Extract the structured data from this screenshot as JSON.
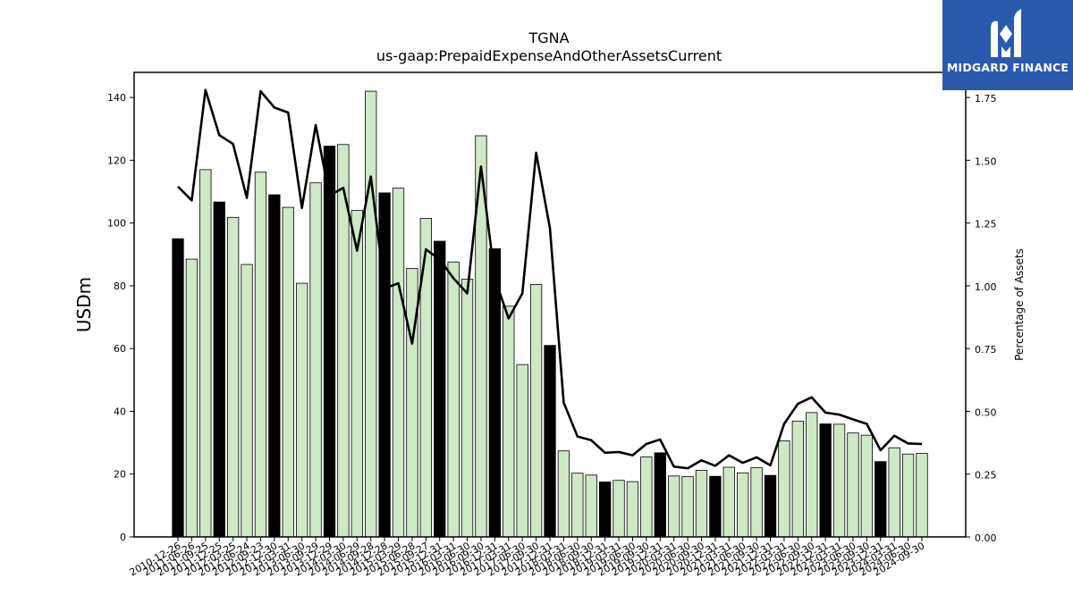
{
  "logo": {
    "text": "MIDGARD FINANCE"
  },
  "chart_data": {
    "type": "bar",
    "title": "TGNA",
    "subtitle": "us-gaap:PrepaidExpenseAndOtherAssetsCurrent",
    "ylabel": "USDm",
    "y2label": "Percentage of Assets",
    "ylim": [
      0,
      148
    ],
    "y2lim": [
      0,
      1.85
    ],
    "yticks": [
      0,
      20,
      40,
      60,
      80,
      100,
      120,
      140
    ],
    "y2ticks": [
      "0.00",
      "0.25",
      "0.50",
      "0.75",
      "1.00",
      "1.25",
      "1.50",
      "1.75"
    ],
    "grid": false,
    "colors": {
      "annual_bar": "#000000",
      "quarter_bar": "#cfe8c8",
      "line": "#000000"
    },
    "categories": [
      "2010-12-26",
      "2011-06-26",
      "2011-09-25",
      "2011-12-25",
      "2012-03-25",
      "2012-06-24",
      "2012-09-23",
      "2012-12-30",
      "2013-03-31",
      "2013-06-30",
      "2013-09-29",
      "2013-12-29",
      "2014-03-30",
      "2014-06-29",
      "2014-09-28",
      "2014-12-28",
      "2015-03-29",
      "2015-06-28",
      "2015-09-27",
      "2015-12-31",
      "2016-03-31",
      "2016-06-30",
      "2016-09-30",
      "2016-12-31",
      "2017-03-31",
      "2017-06-30",
      "2017-09-30",
      "2017-12-31",
      "2018-03-31",
      "2018-06-30",
      "2018-09-30",
      "2018-12-31",
      "2019-03-31",
      "2019-06-30",
      "2019-09-30",
      "2019-12-31",
      "2020-03-31",
      "2020-06-30",
      "2020-09-30",
      "2020-12-31",
      "2021-03-31",
      "2021-06-30",
      "2021-09-30",
      "2021-12-31",
      "2022-03-31",
      "2022-06-30",
      "2022-09-30",
      "2022-12-31",
      "2023-03-31",
      "2023-06-30",
      "2023-09-30",
      "2023-12-31",
      "2024-03-31",
      "2024-06-30",
      "2024-09-30"
    ],
    "series": [
      {
        "values": [
          95,
          88.5,
          117,
          106.7,
          101.8,
          86.8,
          116.2,
          109,
          105,
          80.8,
          112.8,
          124.5,
          125,
          104,
          142,
          109.6,
          111.1,
          85.5,
          101.5,
          94.2,
          87.6,
          82.1,
          127.8,
          91.8,
          73.5,
          54.9,
          80.4,
          61,
          27.4,
          20.3,
          19.7,
          17.5,
          18,
          17.6,
          25.5,
          26.8,
          19.4,
          19.2,
          21.2,
          19.3,
          22.2,
          20.4,
          22.1,
          19.6,
          30.6,
          36.9,
          39.6,
          36,
          35.9,
          33.1,
          32.4,
          24,
          28.4,
          26.4,
          26.6
        ],
        "annual": [
          true,
          false,
          false,
          true,
          false,
          false,
          false,
          true,
          false,
          false,
          false,
          true,
          false,
          false,
          false,
          true,
          false,
          false,
          false,
          true,
          false,
          false,
          false,
          true,
          false,
          false,
          false,
          true,
          false,
          false,
          false,
          true,
          false,
          false,
          false,
          true,
          false,
          false,
          false,
          true,
          false,
          false,
          false,
          true,
          false,
          false,
          false,
          true,
          false,
          false,
          false,
          true,
          false,
          false,
          false
        ]
      },
      {
        "axis": "right",
        "values": [
          1.395,
          1.34,
          1.78,
          1.6,
          1.565,
          1.35,
          1.775,
          1.71,
          1.69,
          1.31,
          1.64,
          1.36,
          1.39,
          1.14,
          1.435,
          0.99,
          1.01,
          0.77,
          1.145,
          1.105,
          1.03,
          0.97,
          1.475,
          1.03,
          0.87,
          0.97,
          1.53,
          1.23,
          0.535,
          0.4,
          0.385,
          0.335,
          0.338,
          0.325,
          0.37,
          0.388,
          0.28,
          0.273,
          0.305,
          0.283,
          0.325,
          0.295,
          0.317,
          0.285,
          0.45,
          0.53,
          0.556,
          0.495,
          0.487,
          0.468,
          0.45,
          0.345,
          0.403,
          0.372,
          0.37
        ]
      }
    ]
  }
}
